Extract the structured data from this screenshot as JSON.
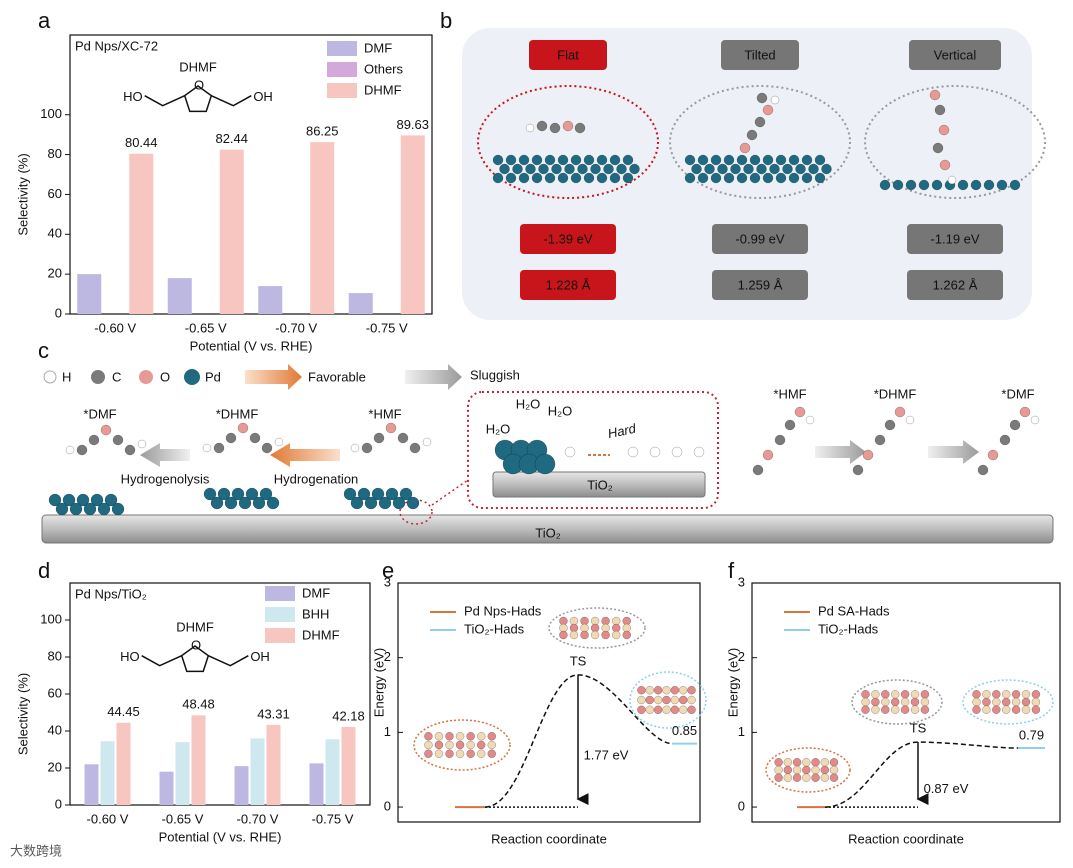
{
  "panel_labels": [
    "a",
    "b",
    "c",
    "d",
    "e",
    "f"
  ],
  "chart_data": [
    {
      "type": "bar",
      "title": "Pd Nps/XC-72",
      "molecule": {
        "name": "DHMF",
        "left": "HO",
        "right": "OH"
      },
      "categories": [
        "-0.60 V",
        "-0.65 V",
        "-0.70 V",
        "-0.75 V"
      ],
      "xlabel": "Potential (V vs. RHE)",
      "ylabel": "Selectivity (%)",
      "ylim": [
        0,
        140
      ],
      "yticks": [
        0,
        20,
        40,
        60,
        80,
        100
      ],
      "series": [
        {
          "name": "DMF",
          "color": "#bcb8e2",
          "values": [
            20,
            18,
            14,
            10.5
          ]
        },
        {
          "name": "Others",
          "color": "#d3a9d9",
          "values": [
            0,
            0,
            0,
            0
          ]
        },
        {
          "name": "DHMF",
          "color": "#f7c6c0",
          "values": [
            80.44,
            82.44,
            86.25,
            89.63
          ],
          "labels": true
        }
      ]
    },
    {
      "type": "bar",
      "title": "Pd Nps/TiO₂",
      "molecule": {
        "name": "DHMF",
        "left": "HO",
        "right": "OH"
      },
      "categories": [
        "-0.60 V",
        "-0.65 V",
        "-0.70 V",
        "-0.75 V"
      ],
      "xlabel": "Potential (V vs. RHE)",
      "ylabel": "Selectivity (%)",
      "ylim": [
        0,
        120
      ],
      "yticks": [
        0,
        20,
        40,
        60,
        80,
        100
      ],
      "series": [
        {
          "name": "DMF",
          "color": "#bcb8e2",
          "values": [
            22,
            18,
            21,
            22.5
          ]
        },
        {
          "name": "BHH",
          "color": "#cfe8ef",
          "values": [
            34.5,
            34,
            36,
            35.5
          ]
        },
        {
          "name": "DHMF",
          "color": "#f7c6c0",
          "values": [
            44.45,
            48.48,
            43.31,
            42.18
          ],
          "labels": true
        }
      ]
    },
    {
      "type": "energy",
      "xlabel": "Reaction coordinate",
      "ylabel": "Energy (eV)",
      "ylim": [
        -0.2,
        3
      ],
      "yticks": [
        0,
        1,
        2,
        3
      ],
      "ts_label": "TS",
      "series": [
        {
          "name": "Pd Nps-Hads",
          "color": "#d5763d"
        },
        {
          "name": "TiO₂-Hads",
          "color": "#8fd0e8"
        }
      ],
      "values": [
        0,
        1.77,
        0.85
      ],
      "value_labels": [
        null,
        "1.77 eV",
        "0.85"
      ]
    },
    {
      "type": "energy",
      "xlabel": "Reaction coordinate",
      "ylabel": "Energy (eV)",
      "ylim": [
        -0.2,
        3
      ],
      "yticks": [
        0,
        1,
        2,
        3
      ],
      "ts_label": "TS",
      "series": [
        {
          "name": "Pd SA-Hads",
          "color": "#d5763d"
        },
        {
          "name": "TiO₂-Hads",
          "color": "#8fd0e8"
        }
      ],
      "values": [
        0,
        0.87,
        0.79
      ],
      "value_labels": [
        null,
        "0.87 eV",
        "0.79"
      ]
    }
  ],
  "panel_b": {
    "configs": [
      {
        "label": "Flat",
        "energy": "-1.39 eV",
        "distance": "1.228 Å"
      },
      {
        "label": "Tilted",
        "energy": "-0.99 eV",
        "distance": "1.259 Å"
      },
      {
        "label": "Vertical",
        "energy": "-1.19 eV",
        "distance": "1.262 Å"
      }
    ]
  },
  "panel_c": {
    "legend": {
      "atoms": [
        "H",
        "C",
        "O",
        "Pd"
      ],
      "favorable": "Favorable",
      "sluggish": "Sluggish"
    },
    "left": {
      "species": [
        "*DMF",
        "*DHMF",
        "*HMF"
      ],
      "steps": [
        "Hydrogenolysis",
        "Hydrogenation"
      ]
    },
    "inset": {
      "water": [
        "H₂O",
        "H₂O",
        "H₂O"
      ],
      "hard": "Hard",
      "support": "TiO₂"
    },
    "support": "TiO₂",
    "right": {
      "species": [
        "*HMF",
        "*DHMF",
        "*DMF"
      ]
    }
  },
  "watermark": "大数跨境"
}
